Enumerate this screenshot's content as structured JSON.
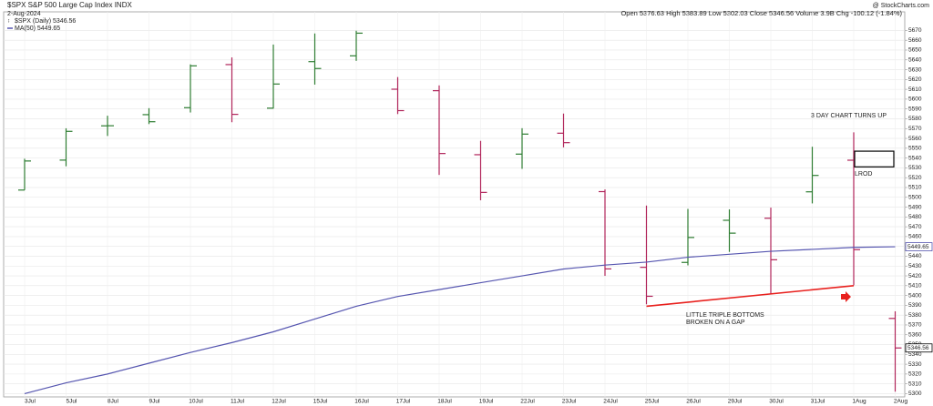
{
  "chart_data": {
    "type": "ohlc",
    "title": "$SPX S&P 500 Large Cap Index INDX",
    "subtitle": "2-Aug-2024",
    "quote": "Open 5376.63  High 5383.89  Low 5302.03  Close 5346.56  Volume 3.9B  Chg -100.12 (-1.84%)",
    "source": "@ StockCharts.com",
    "categories": [
      "3Jul",
      "5Jul",
      "8Jul",
      "9Jul",
      "10Jul",
      "11Jul",
      "12Jul",
      "15Jul",
      "16Jul",
      "17Jul",
      "18Jul",
      "19Jul",
      "22Jul",
      "23Jul",
      "24Jul",
      "25Jul",
      "26Jul",
      "29Jul",
      "30Jul",
      "31Jul",
      "1Aug",
      "2Aug"
    ],
    "series": [
      {
        "name": "$SPX (Daily) 5346.56",
        "up_color": "#2e7d32",
        "down_color": "#b0245a",
        "open": [
          5507.4,
          5537.9,
          5572.8,
          5584.2,
          5591.3,
          5635.2,
          5590.8,
          5638.2,
          5644.1,
          5610.1,
          5608.6,
          5543.4,
          5544.0,
          5565.3,
          5505.8,
          5428.7,
          5433.7,
          5476.6,
          5478.7,
          5505.6,
          5537.8,
          5376.63
        ],
        "high": [
          5539.3,
          5570.3,
          5583.1,
          5590.8,
          5635.4,
          5642.5,
          5655.6,
          5666.9,
          5669.7,
          5622.5,
          5614.0,
          5557.5,
          5570.4,
          5585.3,
          5508.0,
          5491.6,
          5488.2,
          5487.7,
          5489.5,
          5551.5,
          5566.2,
          5383.89
        ],
        "low": [
          5507.4,
          5531.6,
          5562.5,
          5574.6,
          5586.4,
          5576.5,
          5590.4,
          5614.8,
          5639.0,
          5584.8,
          5522.8,
          5497.0,
          5529.0,
          5550.9,
          5420.0,
          5391.0,
          5430.7,
          5444.4,
          5401.7,
          5493.8,
          5410.4,
          5302.03
        ],
        "close": [
          5537.0,
          5567.2,
          5572.9,
          5577.0,
          5633.9,
          5584.5,
          5615.4,
          5631.2,
          5667.2,
          5588.3,
          5544.6,
          5505.0,
          5564.4,
          5555.7,
          5427.1,
          5399.2,
          5459.1,
          5463.5,
          5436.4,
          5522.3,
          5446.7,
          5346.56
        ]
      },
      {
        "name": "MA(50) 5449.65",
        "type": "line",
        "color": "#5656b0",
        "values": [
          5300,
          5311,
          5320,
          5331,
          5342,
          5352,
          5363,
          5376,
          5389,
          5399,
          5406,
          5413,
          5420,
          5427,
          5431,
          5434,
          5439,
          5442,
          5445,
          5447,
          5449,
          5449.65
        ]
      }
    ],
    "support": {
      "x": [
        "25Jul",
        "1Aug"
      ],
      "values": [
        5389,
        5410
      ],
      "color": "#e8211e"
    },
    "box": {
      "label": "LROD",
      "values": [
        5531,
        5547
      ]
    },
    "annotation": "3 DAY CHART TURNS UP",
    "note": [
      "LITTLE TRIPLE BOTTOMS",
      "BROKEN ON A GAP"
    ],
    "ylim": [
      5293,
      5688
    ],
    "yticks": [
      5300,
      5310,
      5320,
      5330,
      5340,
      5350,
      5360,
      5370,
      5380,
      5390,
      5400,
      5410,
      5420,
      5430,
      5440,
      5450,
      5460,
      5470,
      5480,
      5490,
      5500,
      5510,
      5520,
      5530,
      5540,
      5550,
      5560,
      5570,
      5580,
      5590,
      5600,
      5610,
      5620,
      5630,
      5640,
      5650,
      5660,
      5670
    ],
    "grid": true
  }
}
